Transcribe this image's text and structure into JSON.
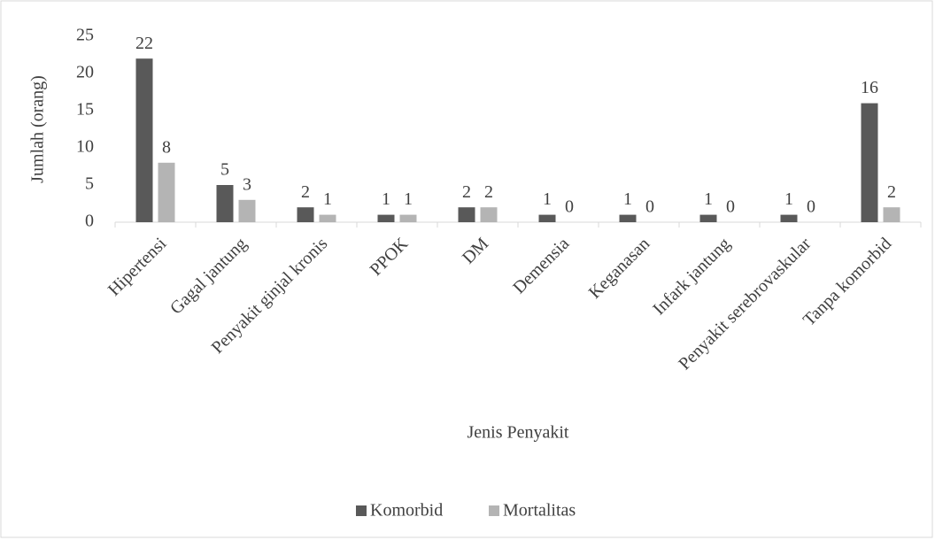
{
  "chart_data": {
    "type": "bar",
    "categories": [
      "Hipertensi",
      "Gagal jantung",
      "Penyakit ginjal kronis",
      "PPOK",
      "DM",
      "Demensia",
      "Keganasan",
      "Infark jantung",
      "Penyakit serebrovaskular",
      "Tanpa komorbid"
    ],
    "series": [
      {
        "name": "Komorbid",
        "color": "#595959",
        "values": [
          22,
          5,
          2,
          1,
          2,
          1,
          1,
          1,
          1,
          16
        ]
      },
      {
        "name": "Mortalitas",
        "color": "#b4b4b4",
        "values": [
          8,
          3,
          1,
          1,
          2,
          0,
          0,
          0,
          0,
          2
        ]
      }
    ],
    "ylabel": "Jumlah (orang)",
    "xlabel": "Jenis Penyakit",
    "ylim": [
      0,
      25
    ],
    "yticks": [
      0,
      5,
      10,
      15,
      20,
      25
    ],
    "grid": false,
    "legend": "bottom"
  }
}
